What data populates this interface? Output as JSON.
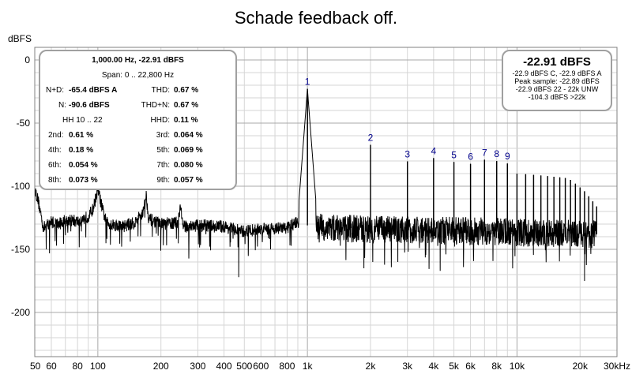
{
  "chart_data": {
    "type": "line",
    "title": "Schade feedback off.",
    "ylabel": "dBFS",
    "xlabel": "",
    "x_scale": "log",
    "xlim": [
      50,
      30000
    ],
    "ylim": [
      -235,
      10
    ],
    "grid": true,
    "y_ticks": [
      0,
      -50,
      -100,
      -150,
      -200
    ],
    "y_tick_labels": [
      "0",
      "-50",
      "-100",
      "-150",
      "-200"
    ],
    "x_ticks": [
      50,
      60,
      80,
      100,
      200,
      300,
      400,
      500,
      600,
      800,
      1000,
      2000,
      3000,
      4000,
      5000,
      6000,
      8000,
      10000,
      20000,
      30000
    ],
    "x_tick_labels": [
      "50",
      "60",
      "80",
      "100",
      "200",
      "300",
      "400",
      "500",
      "600",
      "800",
      "1k",
      "2k",
      "3k",
      "4k",
      "5k",
      "6k",
      "8k",
      "10k",
      "20k",
      "30kHz"
    ],
    "series": [
      {
        "color": "#000000",
        "noise_floor": [
          [
            50,
            -102
          ],
          [
            52,
            -112
          ],
          [
            55,
            -133
          ],
          [
            60,
            -128
          ],
          [
            65,
            -130
          ],
          [
            70,
            -127
          ],
          [
            75,
            -127
          ],
          [
            80,
            -128
          ],
          [
            90,
            -124
          ],
          [
            95,
            -118
          ],
          [
            100,
            -102
          ],
          [
            105,
            -118
          ],
          [
            110,
            -129
          ],
          [
            130,
            -132
          ],
          [
            150,
            -129
          ],
          [
            165,
            -120
          ],
          [
            170,
            -107
          ],
          [
            175,
            -126
          ],
          [
            200,
            -130
          ],
          [
            240,
            -129
          ],
          [
            248,
            -115
          ],
          [
            255,
            -132
          ],
          [
            300,
            -131
          ],
          [
            400,
            -132
          ],
          [
            490,
            -136
          ],
          [
            600,
            -134
          ],
          [
            800,
            -133
          ],
          [
            900,
            -128
          ],
          [
            1000,
            -131
          ],
          [
            1200,
            -133
          ],
          [
            2000,
            -134
          ],
          [
            4000,
            -135
          ],
          [
            8000,
            -136
          ],
          [
            12000,
            -137
          ],
          [
            24000,
            -138
          ]
        ],
        "peaks": [
          {
            "x": 1000,
            "y": -22.9
          },
          {
            "x": 2000,
            "y": -67.2
          },
          {
            "x": 3000,
            "y": -80.3
          },
          {
            "x": 4000,
            "y": -77.7
          },
          {
            "x": 5000,
            "y": -80.8
          },
          {
            "x": 6000,
            "y": -82.3
          },
          {
            "x": 7000,
            "y": -79.0
          },
          {
            "x": 8000,
            "y": -80.1
          },
          {
            "x": 9000,
            "y": -82.0
          },
          {
            "x": 10000,
            "y": -90.0
          },
          {
            "x": 11000,
            "y": -90.5
          },
          {
            "x": 12000,
            "y": -91.0
          },
          {
            "x": 13000,
            "y": -91.5
          },
          {
            "x": 14000,
            "y": -92.0
          },
          {
            "x": 15000,
            "y": -92.5
          },
          {
            "x": 16000,
            "y": -93.0
          },
          {
            "x": 17000,
            "y": -93.5
          },
          {
            "x": 18000,
            "y": -95.0
          },
          {
            "x": 19000,
            "y": -98.0
          },
          {
            "x": 20000,
            "y": -101.0
          },
          {
            "x": 21000,
            "y": -104.0
          },
          {
            "x": 22000,
            "y": -108.0
          },
          {
            "x": 23000,
            "y": -112.0
          },
          {
            "x": 24000,
            "y": -116.0
          }
        ],
        "extra_dips": [
          [
            470,
            -172
          ],
          [
            1860,
            -165
          ],
          [
            2050,
            -160
          ],
          [
            2700,
            -160
          ],
          [
            21000,
            -175
          ],
          [
            4300,
            -167
          ]
        ]
      }
    ],
    "harmonic_labels": [
      {
        "text": "1",
        "x": 1000,
        "y": -22.9
      },
      {
        "text": "2",
        "x": 2000,
        "y": -67.2
      },
      {
        "text": "3",
        "x": 3000,
        "y": -80.3
      },
      {
        "text": "4",
        "x": 4000,
        "y": -77.7
      },
      {
        "text": "5",
        "x": 5000,
        "y": -80.8
      },
      {
        "text": "6",
        "x": 6000,
        "y": -82.3
      },
      {
        "text": "7",
        "x": 7000,
        "y": -79.0
      },
      {
        "text": "8",
        "x": 8000,
        "y": -80.1
      },
      {
        "text": "9",
        "x": 9000,
        "y": -82.0
      }
    ],
    "harmonic_label_color": "#00008b"
  },
  "info_box": {
    "header": "1,000.00 Hz, -22.91 dBFS",
    "span": "Span: 0 .. 22,800 Hz",
    "nd_label": "N+D:",
    "nd_value": "-65.4 dBFS A",
    "thd_label": "THD:",
    "thd_value": "0.67 %",
    "n_label": "N:",
    "n_value": "-90.6 dBFS",
    "thdn_label": "THD+N:",
    "thdn_value": "0.67 %",
    "hh_label": "HH 10 .. 22",
    "hhd_label": "HHD:",
    "hhd_value": "0.11 %",
    "h2_label": "2nd:",
    "h2_value": "0.61 %",
    "h3_label": "3rd:",
    "h3_value": "0.064 %",
    "h4_label": "4th:",
    "h4_value": "0.18 %",
    "h5_label": "5th:",
    "h5_value": "0.069 %",
    "h6_label": "6th:",
    "h6_value": "0.054 %",
    "h7_label": "7th:",
    "h7_value": "0.080 %",
    "h8_label": "8th:",
    "h8_value": "0.073 %",
    "h9_label": "9th:",
    "h9_value": "0.057 %"
  },
  "level_box": {
    "main": "-22.91 dBFS",
    "line1": "-22.9 dBFS C, -22.9 dBFS A",
    "line2": "Peak sample: -22.89 dBFS",
    "line3": "-22.9 dBFS 22 - 22k UNW",
    "line4": "-104.3 dBFS >22k"
  }
}
